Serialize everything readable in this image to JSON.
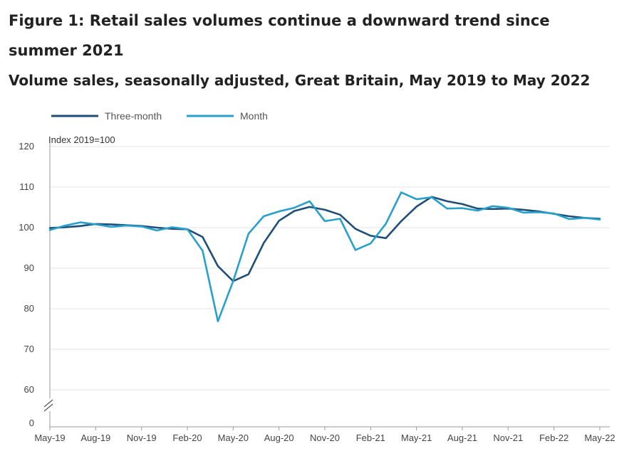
{
  "header": {
    "title": "Figure 1: Retail sales volumes continue a downward trend since summer 2021",
    "subtitle": "Volume sales, seasonally adjusted, Great Britain, May 2019 to May 2022"
  },
  "chart_data": {
    "type": "line",
    "title": "Figure 1: Retail sales volumes continue a downward trend since summer 2021",
    "subtitle": "Volume sales, seasonally adjusted, Great Britain, May 2019 to May 2022",
    "ylabel": "Index 2019=100",
    "xlabel": "",
    "ylim": [
      0,
      120
    ],
    "y_axis_break": true,
    "y_ticks": [
      0,
      60,
      70,
      80,
      90,
      100,
      110,
      120
    ],
    "grid": true,
    "legend_position": "top-left",
    "x_tick_labels": [
      "May-19",
      "Aug-19",
      "Nov-19",
      "Feb-20",
      "May-20",
      "Aug-20",
      "Nov-20",
      "Feb-21",
      "May-21",
      "Aug-21",
      "Nov-21",
      "Feb-22",
      "May-22"
    ],
    "x": [
      "May-19",
      "Jun-19",
      "Jul-19",
      "Aug-19",
      "Sep-19",
      "Oct-19",
      "Nov-19",
      "Dec-19",
      "Jan-20",
      "Feb-20",
      "Mar-20",
      "Apr-20",
      "May-20",
      "Jun-20",
      "Jul-20",
      "Aug-20",
      "Sep-20",
      "Oct-20",
      "Nov-20",
      "Dec-20",
      "Jan-21",
      "Feb-21",
      "Mar-21",
      "Apr-21",
      "May-21",
      "Jun-21",
      "Jul-21",
      "Aug-21",
      "Sep-21",
      "Oct-21",
      "Nov-21",
      "Dec-21",
      "Jan-22",
      "Feb-22",
      "Mar-22",
      "Apr-22",
      "May-22"
    ],
    "series": [
      {
        "name": "Three-month",
        "color": "#1f4e79",
        "values": [
          99.9,
          100.1,
          100.4,
          100.9,
          100.8,
          100.6,
          100.4,
          100.0,
          99.7,
          99.6,
          97.7,
          90.5,
          86.8,
          88.5,
          96.2,
          101.7,
          104.1,
          105.1,
          104.4,
          103.2,
          99.7,
          98.0,
          97.4,
          101.6,
          105.2,
          107.6,
          106.5,
          105.8,
          104.7,
          104.6,
          104.7,
          104.4,
          104.0,
          103.4,
          102.8,
          102.4,
          102.2
        ]
      },
      {
        "name": "Month",
        "color": "#27a0cc",
        "values": [
          99.4,
          100.5,
          101.3,
          100.8,
          100.2,
          100.5,
          100.3,
          99.3,
          100.1,
          99.6,
          94.3,
          76.9,
          86.8,
          98.5,
          102.8,
          104.0,
          104.9,
          106.5,
          101.6,
          102.2,
          94.5,
          96.1,
          101.0,
          108.7,
          107.0,
          107.5,
          104.7,
          104.8,
          104.2,
          105.3,
          104.9,
          103.7,
          103.8,
          103.5,
          102.1,
          102.4,
          102.0
        ]
      }
    ]
  }
}
